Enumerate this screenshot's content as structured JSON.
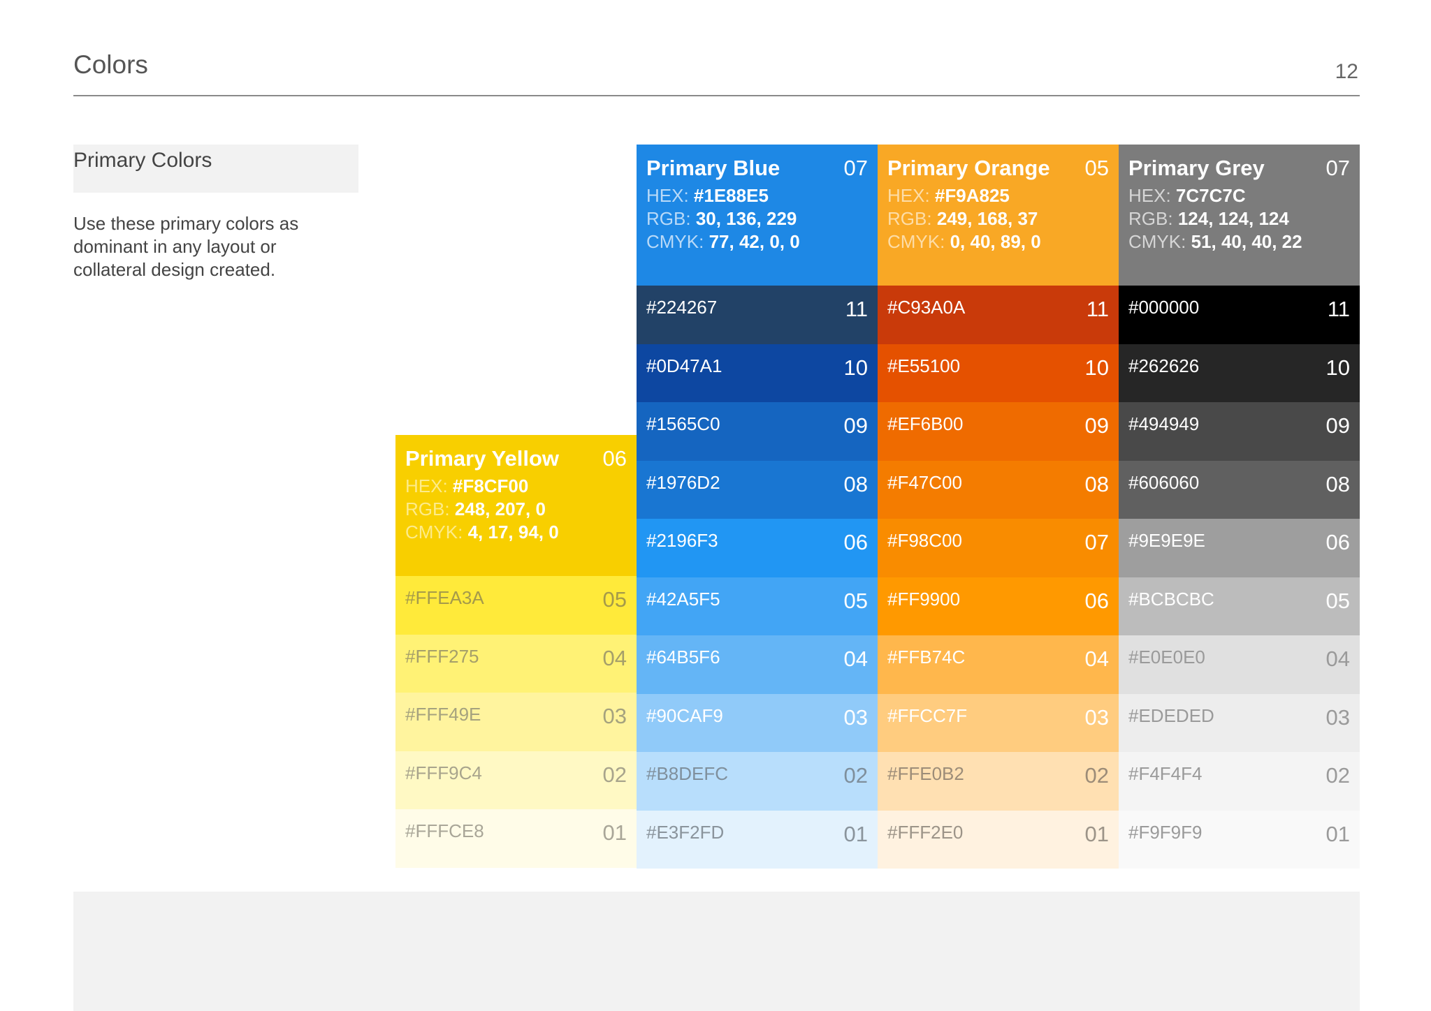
{
  "page": {
    "title": "Colors",
    "number": "12"
  },
  "section": {
    "label": "Primary Colors",
    "description": "Use these primary colors as dominant in any layout or collateral design created."
  },
  "labels": {
    "hex": "HEX:",
    "rgb": "RGB:",
    "cmyk": "CMYK:"
  },
  "palettes": [
    {
      "id": "yellow",
      "name": "Primary Yellow",
      "code": "06",
      "hex": "#F8CF00",
      "rgb": "248, 207, 0",
      "cmyk": "4, 17, 94, 0",
      "head_color": "#F8CF00",
      "label_color": "#FDEB8A",
      "swatches": [
        {
          "hex": "#FFEA3A",
          "code": "05",
          "color": "#FFEA3A",
          "text": "#a59a4a"
        },
        {
          "hex": "#FFF275",
          "code": "04",
          "color": "#FFF275",
          "text": "#a59f6a"
        },
        {
          "hex": "#FFF49E",
          "code": "03",
          "color": "#FFF49E",
          "text": "#a5a27e"
        },
        {
          "hex": "#FFF9C4",
          "code": "02",
          "color": "#FFF9C4",
          "text": "#a8a48c"
        },
        {
          "hex": "#FFFCE8",
          "code": "01",
          "color": "#FFFCE8",
          "text": "#a9a698"
        }
      ]
    },
    {
      "id": "blue",
      "name": "Primary Blue",
      "code": "07",
      "hex": "#1E88E5",
      "rgb": "30, 136, 229",
      "cmyk": "77, 42, 0, 0",
      "head_color": "#1E88E5",
      "label_color": "#B9DAF8",
      "swatches": [
        {
          "hex": "#224267",
          "code": "11",
          "color": "#224267",
          "text": "#ffffff"
        },
        {
          "hex": "#0D47A1",
          "code": "10",
          "color": "#0D47A1",
          "text": "#ffffff"
        },
        {
          "hex": "#1565C0",
          "code": "09",
          "color": "#1565C0",
          "text": "#ffffff"
        },
        {
          "hex": "#1976D2",
          "code": "08",
          "color": "#1976D2",
          "text": "#ffffff"
        },
        {
          "hex": "#2196F3",
          "code": "06",
          "color": "#2196F3",
          "text": "#ffffff"
        },
        {
          "hex": "#42A5F5",
          "code": "05",
          "color": "#42A5F5",
          "text": "#ffffff"
        },
        {
          "hex": "#64B5F6",
          "code": "04",
          "color": "#64B5F6",
          "text": "#ffffff"
        },
        {
          "hex": "#90CAF9",
          "code": "03",
          "color": "#90CAF9",
          "text": "#ffffff"
        },
        {
          "hex": "#B8DEFC",
          "code": "02",
          "color": "#B8DEFC",
          "text": "#7f8f9c"
        },
        {
          "hex": "#E3F2FD",
          "code": "01",
          "color": "#E3F2FD",
          "text": "#8a949c"
        }
      ]
    },
    {
      "id": "orange",
      "name": "Primary Orange",
      "code": "05",
      "hex": "#F9A825",
      "rgb": "249, 168, 37",
      "cmyk": "0, 40, 89, 0",
      "head_color": "#F9A825",
      "label_color": "#FDDDA8",
      "swatches": [
        {
          "hex": "#C93A0A",
          "code": "11",
          "color": "#C93A0A",
          "text": "#ffffff"
        },
        {
          "hex": "#E55100",
          "code": "10",
          "color": "#E55100",
          "text": "#ffffff"
        },
        {
          "hex": "#EF6B00",
          "code": "09",
          "color": "#EF6B00",
          "text": "#ffffff"
        },
        {
          "hex": "#F47C00",
          "code": "08",
          "color": "#F47C00",
          "text": "#ffffff"
        },
        {
          "hex": "#F98C00",
          "code": "07",
          "color": "#F98C00",
          "text": "#ffffff"
        },
        {
          "hex": "#FF9900",
          "code": "06",
          "color": "#FF9900",
          "text": "#ffffff"
        },
        {
          "hex": "#FFB74C",
          "code": "04",
          "color": "#FFB74C",
          "text": "#ffffff"
        },
        {
          "hex": "#FFCC7F",
          "code": "03",
          "color": "#FFCC7F",
          "text": "#ffffff"
        },
        {
          "hex": "#FFE0B2",
          "code": "02",
          "color": "#FFE0B2",
          "text": "#9c8c78"
        },
        {
          "hex": "#FFF2E0",
          "code": "01",
          "color": "#FFF2E0",
          "text": "#9c9488"
        }
      ]
    },
    {
      "id": "grey",
      "name": "Primary Grey",
      "code": "07",
      "hex": "7C7C7C",
      "rgb": "124, 124, 124",
      "cmyk": "51, 40, 40, 22",
      "head_color": "#7C7C7C",
      "label_color": "#D6D6D6",
      "swatches": [
        {
          "hex": "#000000",
          "code": "11",
          "color": "#000000",
          "text": "#ffffff"
        },
        {
          "hex": "#262626",
          "code": "10",
          "color": "#262626",
          "text": "#ffffff"
        },
        {
          "hex": "#494949",
          "code": "09",
          "color": "#494949",
          "text": "#ffffff"
        },
        {
          "hex": "#606060",
          "code": "08",
          "color": "#606060",
          "text": "#ffffff"
        },
        {
          "hex": "#9E9E9E",
          "code": "06",
          "color": "#9E9E9E",
          "text": "#ffffff"
        },
        {
          "hex": "#BCBCBC",
          "code": "05",
          "color": "#BCBCBC",
          "text": "#ffffff"
        },
        {
          "hex": "#E0E0E0",
          "code": "04",
          "color": "#E0E0E0",
          "text": "#9a9a9a"
        },
        {
          "hex": "#EDEDED",
          "code": "03",
          "color": "#EDEDED",
          "text": "#9a9a9a"
        },
        {
          "hex": "#F4F4F4",
          "code": "02",
          "color": "#F4F4F4",
          "text": "#9a9a9a"
        },
        {
          "hex": "#F9F9F9",
          "code": "01",
          "color": "#F9F9F9",
          "text": "#9a9a9a"
        }
      ]
    }
  ]
}
